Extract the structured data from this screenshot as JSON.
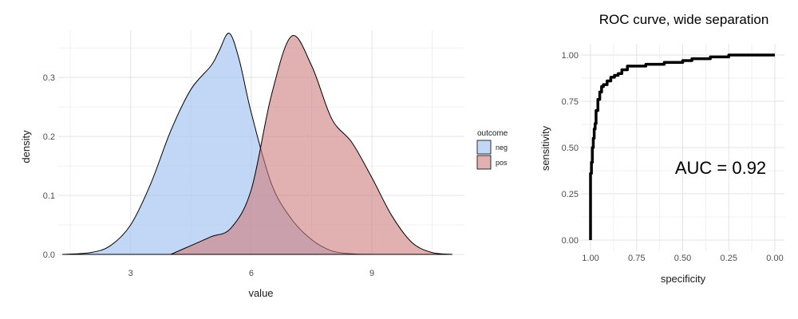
{
  "chart_data": [
    {
      "type": "area",
      "title": "",
      "xlabel": "value",
      "ylabel": "density",
      "xlim": [
        1.2,
        11.3
      ],
      "ylim": [
        0,
        0.38
      ],
      "x_ticks": [
        3,
        6,
        9
      ],
      "y_ticks": [
        0.0,
        0.1,
        0.2,
        0.3
      ],
      "y_tick_labels": [
        "0.0",
        "0.1",
        "0.2",
        "0.3"
      ],
      "grid": true,
      "legend": {
        "title": "outcome",
        "position": "right",
        "entries": [
          {
            "name": "neg",
            "fill": "#a8c4f2",
            "alpha": 0.7
          },
          {
            "name": "pos",
            "fill": "#cd7b7b",
            "alpha": 0.6
          }
        ]
      },
      "series": [
        {
          "name": "neg",
          "x": [
            1.3,
            2.0,
            2.5,
            3.0,
            3.5,
            4.0,
            4.5,
            5.0,
            5.2,
            5.45,
            5.7,
            6.0,
            6.5,
            7.0,
            7.5,
            8.0,
            8.5,
            9.0
          ],
          "y": [
            0.0,
            0.003,
            0.015,
            0.05,
            0.12,
            0.21,
            0.28,
            0.32,
            0.345,
            0.375,
            0.33,
            0.24,
            0.12,
            0.06,
            0.025,
            0.006,
            0.001,
            0.0
          ]
        },
        {
          "name": "pos",
          "x": [
            4.0,
            4.5,
            5.0,
            5.5,
            6.0,
            6.5,
            7.0,
            7.5,
            8.0,
            8.5,
            9.0,
            9.5,
            10.0,
            10.5,
            11.0
          ],
          "y": [
            0.0,
            0.015,
            0.03,
            0.045,
            0.11,
            0.27,
            0.37,
            0.32,
            0.23,
            0.19,
            0.13,
            0.065,
            0.02,
            0.003,
            0.0
          ]
        }
      ]
    },
    {
      "type": "line",
      "title": "ROC curve, wide separation",
      "xlabel": "specificity",
      "ylabel": "sensitivity",
      "xlim": [
        1.0,
        0.0
      ],
      "ylim": [
        0,
        1
      ],
      "x_ticks": [
        1.0,
        0.75,
        0.5,
        0.25,
        0.0
      ],
      "x_tick_labels": [
        "1.00",
        "0.75",
        "0.50",
        "0.25",
        "0.00"
      ],
      "y_ticks": [
        0.0,
        0.25,
        0.5,
        0.75,
        1.0
      ],
      "y_tick_labels": [
        "0.00",
        "0.25",
        "0.50",
        "0.75",
        "1.00"
      ],
      "grid": true,
      "annotation": "AUC = 0.92",
      "series": [
        {
          "name": "",
          "x": [
            1.0,
            1.0,
            0.995,
            0.99,
            0.985,
            0.98,
            0.975,
            0.97,
            0.96,
            0.95,
            0.94,
            0.93,
            0.91,
            0.89,
            0.87,
            0.85,
            0.83,
            0.8,
            0.75,
            0.7,
            0.6,
            0.5,
            0.45,
            0.35,
            0.28,
            0.25,
            0.2,
            0.1,
            0.0
          ],
          "y": [
            0.0,
            0.28,
            0.36,
            0.42,
            0.5,
            0.55,
            0.6,
            0.63,
            0.7,
            0.76,
            0.8,
            0.83,
            0.84,
            0.86,
            0.88,
            0.89,
            0.9,
            0.92,
            0.94,
            0.94,
            0.95,
            0.96,
            0.97,
            0.98,
            0.99,
            0.99,
            1.0,
            1.0,
            1.0
          ]
        }
      ]
    }
  ]
}
